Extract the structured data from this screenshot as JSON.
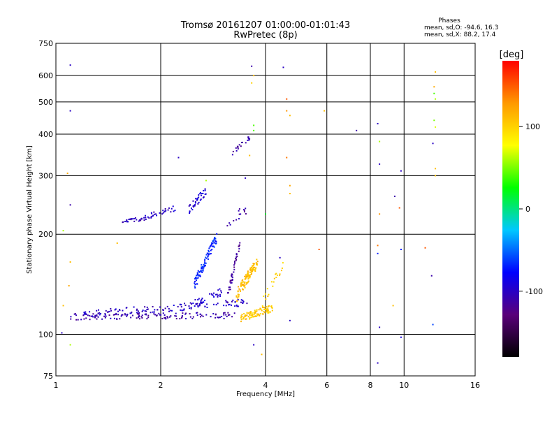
{
  "chart_data": {
    "type": "scatter",
    "title": "Tromsø 20161207 01:00:00-01:01:43",
    "subtitle": "RwPretec (8p)",
    "xlabel": "Frequency [MHz]",
    "ylabel": "Stationary phase Virtual Height [km]",
    "x_scale": "log",
    "y_scale": "log",
    "xlim": [
      1,
      16
    ],
    "ylim": [
      75,
      750
    ],
    "x_ticks": [
      1,
      2,
      4,
      6,
      8,
      10,
      16
    ],
    "y_ticks": [
      75,
      100,
      200,
      300,
      400,
      500,
      600,
      750
    ],
    "grid": true,
    "stats": {
      "heading": "Phases",
      "line_o": "mean, sd,O: -94.6, 16.3",
      "line_x": "mean, sd,X:  88.2, 17.4"
    },
    "colorbar": {
      "label": "[deg]",
      "ticks": [
        100,
        0,
        -100
      ],
      "range": [
        -180,
        180
      ],
      "colors": [
        "#000000",
        "#5a007a",
        "#0000ff",
        "#00c8ff",
        "#00ff00",
        "#ffff00",
        "#ff9900",
        "#ff0000"
      ]
    },
    "clusters": [
      {
        "name": "o-trace-lower",
        "f0": 1.1,
        "f1": 3.3,
        "h0": 113,
        "h1": 114,
        "n": 130,
        "jitter_h": 2.5,
        "phase": -110
      },
      {
        "name": "o-trace-upper",
        "f0": 1.2,
        "f1": 3.6,
        "h0": 115,
        "h1": 125,
        "n": 120,
        "jitter_h": 3,
        "phase": -100
      },
      {
        "name": "o-cusp",
        "f0": 2.3,
        "f1": 3.0,
        "h0": 118,
        "h1": 135,
        "n": 40,
        "jitter_h": 4,
        "phase": -95
      },
      {
        "name": "o-vertical-1",
        "f0": 2.5,
        "f1": 2.9,
        "h0": 140,
        "h1": 195,
        "n": 90,
        "jitter_h": 6,
        "phase": -70
      },
      {
        "name": "o-vertical-2",
        "f0": 3.1,
        "f1": 3.4,
        "h0": 125,
        "h1": 190,
        "n": 45,
        "jitter_h": 5,
        "phase": -115
      },
      {
        "name": "x-trace",
        "f0": 3.4,
        "f1": 4.2,
        "h0": 112,
        "h1": 120,
        "n": 90,
        "jitter_h": 3,
        "phase": 105
      },
      {
        "name": "x-cluster",
        "f0": 3.3,
        "f1": 3.8,
        "h0": 130,
        "h1": 165,
        "n": 110,
        "jitter_h": 6,
        "phase": 110
      },
      {
        "name": "x-rising",
        "f0": 3.9,
        "f1": 4.5,
        "h0": 125,
        "h1": 160,
        "n": 20,
        "jitter_h": 5,
        "phase": 100
      },
      {
        "name": "f-trace-1",
        "f0": 1.55,
        "f1": 1.8,
        "h0": 220,
        "h1": 222,
        "n": 25,
        "jitter_h": 3,
        "phase": -105
      },
      {
        "name": "f-trace-2",
        "f0": 1.8,
        "f1": 2.2,
        "h0": 225,
        "h1": 240,
        "n": 30,
        "jitter_h": 5,
        "phase": -100
      },
      {
        "name": "f-trace-3",
        "f0": 2.4,
        "f1": 2.7,
        "h0": 235,
        "h1": 270,
        "n": 40,
        "jitter_h": 8,
        "phase": -95
      },
      {
        "name": "f-trace-4",
        "f0": 3.1,
        "f1": 3.55,
        "h0": 215,
        "h1": 240,
        "n": 15,
        "jitter_h": 8,
        "phase": -110
      },
      {
        "name": "f-trace-5",
        "f0": 3.2,
        "f1": 3.6,
        "h0": 350,
        "h1": 390,
        "n": 20,
        "jitter_h": 6,
        "phase": -110
      }
    ],
    "points": [
      {
        "f": 1.1,
        "h": 645,
        "phase": -100
      },
      {
        "f": 1.1,
        "h": 470,
        "phase": -100
      },
      {
        "f": 1.1,
        "h": 245,
        "phase": -110
      },
      {
        "f": 1.08,
        "h": 305,
        "phase": 120
      },
      {
        "f": 1.05,
        "h": 205,
        "phase": 60
      },
      {
        "f": 1.1,
        "h": 165,
        "phase": 110
      },
      {
        "f": 1.09,
        "h": 140,
        "phase": 120
      },
      {
        "f": 1.05,
        "h": 122,
        "phase": 110
      },
      {
        "f": 1.1,
        "h": 93,
        "phase": 60
      },
      {
        "f": 1.04,
        "h": 101,
        "phase": -100
      },
      {
        "f": 1.5,
        "h": 188,
        "phase": 110
      },
      {
        "f": 2.25,
        "h": 340,
        "phase": -100
      },
      {
        "f": 2.7,
        "h": 290,
        "phase": 60
      },
      {
        "f": 3.5,
        "h": 295,
        "phase": -100
      },
      {
        "f": 3.65,
        "h": 640,
        "phase": -110
      },
      {
        "f": 3.7,
        "h": 600,
        "phase": 110
      },
      {
        "f": 3.65,
        "h": 570,
        "phase": 100
      },
      {
        "f": 3.7,
        "h": 425,
        "phase": 40
      },
      {
        "f": 3.7,
        "h": 410,
        "phase": 40
      },
      {
        "f": 3.6,
        "h": 345,
        "phase": 110
      },
      {
        "f": 3.7,
        "h": 93,
        "phase": -100
      },
      {
        "f": 3.9,
        "h": 87,
        "phase": 110
      },
      {
        "f": 4.0,
        "h": 230,
        "phase": 20
      },
      {
        "f": 4.5,
        "h": 635,
        "phase": -100
      },
      {
        "f": 4.6,
        "h": 510,
        "phase": 150
      },
      {
        "f": 4.6,
        "h": 470,
        "phase": 130
      },
      {
        "f": 4.7,
        "h": 455,
        "phase": 110
      },
      {
        "f": 4.6,
        "h": 340,
        "phase": 140
      },
      {
        "f": 4.7,
        "h": 280,
        "phase": 120
      },
      {
        "f": 4.7,
        "h": 265,
        "phase": 110
      },
      {
        "f": 4.4,
        "h": 170,
        "phase": -100
      },
      {
        "f": 4.7,
        "h": 110,
        "phase": -100
      },
      {
        "f": 5.7,
        "h": 180,
        "phase": 150
      },
      {
        "f": 5.9,
        "h": 470,
        "phase": 110
      },
      {
        "f": 7.3,
        "h": 410,
        "phase": -110
      },
      {
        "f": 8.4,
        "h": 430,
        "phase": -100
      },
      {
        "f": 8.5,
        "h": 380,
        "phase": 60
      },
      {
        "f": 8.5,
        "h": 325,
        "phase": -100
      },
      {
        "f": 8.5,
        "h": 230,
        "phase": 130
      },
      {
        "f": 8.4,
        "h": 185,
        "phase": 140
      },
      {
        "f": 8.4,
        "h": 175,
        "phase": -70
      },
      {
        "f": 8.5,
        "h": 105,
        "phase": -100
      },
      {
        "f": 8.4,
        "h": 82,
        "phase": -100
      },
      {
        "f": 9.8,
        "h": 310,
        "phase": -100
      },
      {
        "f": 9.4,
        "h": 260,
        "phase": -110
      },
      {
        "f": 9.7,
        "h": 240,
        "phase": 150
      },
      {
        "f": 9.8,
        "h": 180,
        "phase": -70
      },
      {
        "f": 9.3,
        "h": 122,
        "phase": 110
      },
      {
        "f": 9.8,
        "h": 98,
        "phase": -90
      },
      {
        "f": 11.5,
        "h": 182,
        "phase": 150
      },
      {
        "f": 12.0,
        "h": 150,
        "phase": -110
      },
      {
        "f": 12.1,
        "h": 375,
        "phase": -100
      },
      {
        "f": 12.1,
        "h": 107,
        "phase": -60
      },
      {
        "f": 12.3,
        "h": 615,
        "phase": 110
      },
      {
        "f": 12.2,
        "h": 555,
        "phase": 120
      },
      {
        "f": 12.2,
        "h": 530,
        "phase": 40
      },
      {
        "f": 12.3,
        "h": 510,
        "phase": 60
      },
      {
        "f": 12.2,
        "h": 440,
        "phase": 50
      },
      {
        "f": 12.3,
        "h": 420,
        "phase": 70
      },
      {
        "f": 12.3,
        "h": 315,
        "phase": 110
      },
      {
        "f": 12.3,
        "h": 300,
        "phase": 110
      }
    ]
  }
}
